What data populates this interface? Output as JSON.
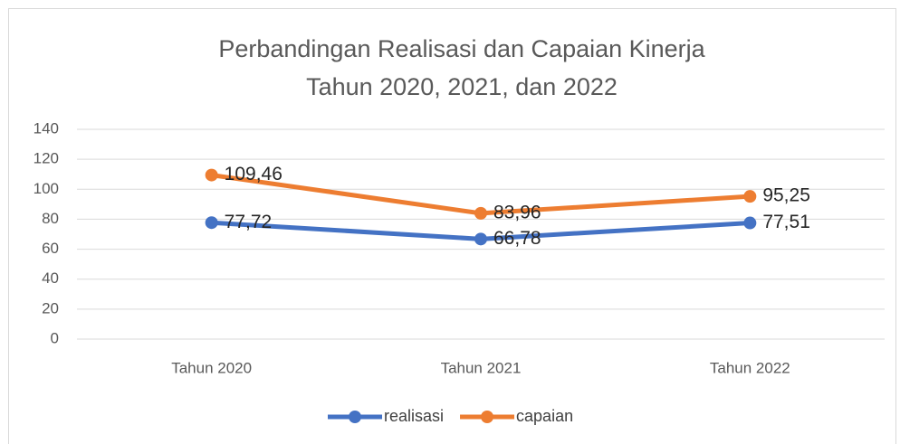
{
  "chart_data": {
    "type": "line",
    "title": "Perbandingan Realisasi dan Capaian Kinerja",
    "subtitle": "Tahun 2020, 2021, dan 2022",
    "categories": [
      "Tahun 2020",
      "Tahun 2021",
      "Tahun 2022"
    ],
    "series": [
      {
        "name": "realisasi",
        "color": "#4472c4",
        "values": [
          77.72,
          66.78,
          77.51
        ],
        "value_labels": [
          "77,72",
          "66,78",
          "77,51"
        ]
      },
      {
        "name": "capaian",
        "color": "#ed7d31",
        "values": [
          109.46,
          83.96,
          95.25
        ],
        "value_labels": [
          "109,46",
          "83,96",
          "95,25"
        ]
      }
    ],
    "ylim": [
      0,
      140
    ],
    "yticks": [
      0,
      20,
      40,
      60,
      80,
      100,
      120,
      140
    ],
    "grid": true,
    "legend": "bottom"
  }
}
